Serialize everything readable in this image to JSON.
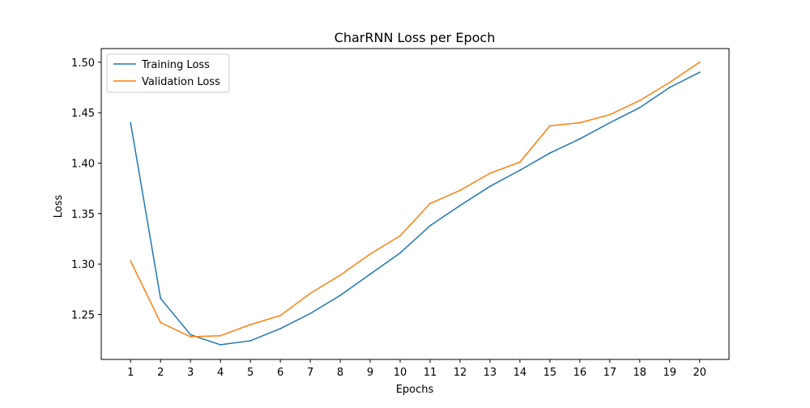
{
  "chart_data": {
    "type": "line",
    "title": "CharRNN Loss per Epoch",
    "xlabel": "Epochs",
    "ylabel": "Loss",
    "x": [
      1,
      2,
      3,
      4,
      5,
      6,
      7,
      8,
      9,
      10,
      11,
      12,
      13,
      14,
      15,
      16,
      17,
      18,
      19,
      20
    ],
    "xlim": [
      0.02,
      20.98
    ],
    "ylim": [
      1.2055,
      1.5135
    ],
    "x_ticks": [
      "1",
      "2",
      "3",
      "4",
      "5",
      "6",
      "7",
      "8",
      "9",
      "10",
      "11",
      "12",
      "13",
      "14",
      "15",
      "16",
      "17",
      "18",
      "19",
      "20"
    ],
    "y_ticks": [
      1.25,
      1.3,
      1.35,
      1.4,
      1.45,
      1.5
    ],
    "y_tick_labels": [
      "1.25",
      "1.30",
      "1.35",
      "1.40",
      "1.45",
      "1.50"
    ],
    "grid": false,
    "legend_position": "top-left",
    "series": [
      {
        "name": "Training Loss",
        "color": "#1f77b4",
        "values": [
          1.44,
          1.266,
          1.23,
          1.22,
          1.224,
          1.236,
          1.251,
          1.269,
          1.29,
          1.311,
          1.338,
          1.358,
          1.377,
          1.393,
          1.41,
          1.424,
          1.44,
          1.455,
          1.475,
          1.49
        ]
      },
      {
        "name": "Validation Loss",
        "color": "#ff7f0e",
        "values": [
          1.303,
          1.242,
          1.228,
          1.229,
          1.24,
          1.249,
          1.271,
          1.289,
          1.31,
          1.328,
          1.36,
          1.373,
          1.39,
          1.401,
          1.437,
          1.44,
          1.448,
          1.462,
          1.48,
          1.5
        ]
      }
    ]
  }
}
